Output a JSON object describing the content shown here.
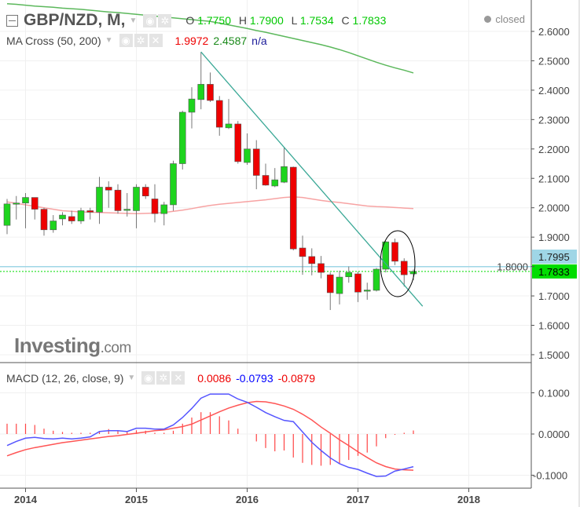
{
  "header": {
    "symbol": "GBP/NZD, M,",
    "open_label": "O",
    "open": "1.7750",
    "high_label": "H",
    "high": "1.7900",
    "low_label": "L",
    "low": "1.7534",
    "close_label": "C",
    "close": "1.7833",
    "status": "closed"
  },
  "ma_legend": {
    "label": "MA Cross (50, 200)",
    "ma50": "1.9972",
    "ma200": "2.4587",
    "extra": "n/a"
  },
  "macd_legend": {
    "label": "MACD (12, 26, close, 9)",
    "hist": "0.0086",
    "macd": "-0.0793",
    "signal": "-0.0879"
  },
  "logo": {
    "text": "Investing",
    "suffix": ".com"
  },
  "price_markers": {
    "last": "1.7833",
    "line": "1.7995"
  },
  "colors": {
    "up": "#1ed41e",
    "down": "#ee0000",
    "ma50": "#f7a3a3",
    "ma200": "#5cb85c",
    "trendline": "#3aa896",
    "macd": "#5555ff",
    "signal": "#ff5555",
    "hist": "#ff4444",
    "last_price": "#00dd00",
    "marker_line": "#9fd6e6"
  },
  "chart_data": [
    {
      "type": "candlestick",
      "title": "GBP/NZD, M,",
      "x_ticks": [
        "2014",
        "2015",
        "2016",
        "2017",
        "2018"
      ],
      "y_ticks": [
        "2.6000",
        "2.5000",
        "2.4000",
        "2.3000",
        "2.2000",
        "2.1000",
        "2.0000",
        "1.9000",
        "1.8000",
        "1.7000",
        "1.6000",
        "1.5000"
      ],
      "ylim": [
        1.5,
        2.6
      ],
      "grid": true,
      "dates": [
        "2013-11",
        "2013-12",
        "2014-01",
        "2014-02",
        "2014-03",
        "2014-04",
        "2014-05",
        "2014-06",
        "2014-07",
        "2014-08",
        "2014-09",
        "2014-10",
        "2014-11",
        "2014-12",
        "2015-01",
        "2015-02",
        "2015-03",
        "2015-04",
        "2015-05",
        "2015-06",
        "2015-07",
        "2015-08",
        "2015-09",
        "2015-10",
        "2015-11",
        "2015-12",
        "2016-01",
        "2016-02",
        "2016-03",
        "2016-04",
        "2016-05",
        "2016-06",
        "2016-07",
        "2016-08",
        "2016-09",
        "2016-10",
        "2016-11",
        "2016-12",
        "2017-01",
        "2017-02",
        "2017-03",
        "2017-04",
        "2017-05",
        "2017-06",
        "2017-07"
      ],
      "ohlc": [
        [
          1.94,
          2.03,
          1.91,
          2.013
        ],
        [
          2.013,
          2.04,
          1.96,
          2.016
        ],
        [
          2.016,
          2.05,
          1.93,
          2.035
        ],
        [
          2.035,
          2.035,
          1.96,
          1.995
        ],
        [
          1.995,
          2.0,
          1.905,
          1.925
        ],
        [
          1.925,
          1.975,
          1.915,
          1.955
        ],
        [
          1.962,
          1.985,
          1.94,
          1.975
        ],
        [
          1.97,
          1.99,
          1.945,
          1.955
        ],
        [
          1.955,
          2.0,
          1.945,
          1.99
        ],
        [
          1.99,
          2.0,
          1.96,
          1.985
        ],
        [
          1.985,
          2.105,
          1.945,
          2.07
        ],
        [
          2.07,
          2.09,
          2.0,
          2.06
        ],
        [
          2.06,
          2.08,
          1.98,
          1.99
        ],
        [
          1.992,
          2.05,
          1.97,
          1.995
        ],
        [
          1.99,
          2.08,
          1.93,
          2.07
        ],
        [
          2.07,
          2.08,
          2.03,
          2.04
        ],
        [
          2.03,
          2.08,
          1.95,
          1.98
        ],
        [
          1.98,
          2.02,
          1.94,
          2.01
        ],
        [
          2.01,
          2.16,
          1.99,
          2.15
        ],
        [
          2.15,
          2.33,
          2.13,
          2.325
        ],
        [
          2.325,
          2.41,
          2.27,
          2.37
        ],
        [
          2.368,
          2.53,
          2.335,
          2.42
        ],
        [
          2.42,
          2.46,
          2.36,
          2.365
        ],
        [
          2.365,
          2.38,
          2.245,
          2.274
        ],
        [
          2.272,
          2.37,
          2.268,
          2.285
        ],
        [
          2.285,
          2.295,
          2.15,
          2.157
        ],
        [
          2.154,
          2.253,
          2.146,
          2.2
        ],
        [
          2.2,
          2.23,
          2.063,
          2.11
        ],
        [
          2.11,
          2.15,
          2.075,
          2.077
        ],
        [
          2.074,
          2.135,
          2.07,
          2.095
        ],
        [
          2.087,
          2.205,
          2.084,
          2.14
        ],
        [
          2.138,
          2.14,
          1.855,
          1.86
        ],
        [
          1.863,
          1.905,
          1.772,
          1.834
        ],
        [
          1.834,
          1.862,
          1.77,
          1.81
        ],
        [
          1.81,
          1.836,
          1.76,
          1.78
        ],
        [
          1.772,
          1.78,
          1.652,
          1.711
        ],
        [
          1.708,
          1.786,
          1.671,
          1.764
        ],
        [
          1.765,
          1.8,
          1.745,
          1.78
        ],
        [
          1.775,
          1.783,
          1.679,
          1.713
        ],
        [
          1.716,
          1.745,
          1.687,
          1.72
        ],
        [
          1.719,
          1.795,
          1.715,
          1.791
        ],
        [
          1.791,
          1.887,
          1.78,
          1.884
        ],
        [
          1.882,
          1.895,
          1.805,
          1.818
        ],
        [
          1.818,
          1.828,
          1.732,
          1.772
        ],
        [
          1.775,
          1.79,
          1.7534,
          1.7833
        ]
      ],
      "ma50": [
        2.02,
        2.015,
        2.01,
        2.005,
        2.0,
        1.995,
        1.99,
        1.988,
        1.986,
        1.985,
        1.984,
        1.983,
        1.982,
        1.981,
        1.98,
        1.981,
        1.982,
        1.984,
        1.988,
        1.992,
        1.997,
        2.003,
        2.008,
        2.012,
        2.015,
        2.018,
        2.021,
        2.024,
        2.027,
        2.031,
        2.035,
        2.037,
        2.035,
        2.03,
        2.025,
        2.021,
        2.018,
        2.014,
        2.01,
        2.006,
        2.004,
        2.003,
        2.001,
        1.999,
        1.9972
      ],
      "ma200": [
        2.694,
        2.692,
        2.689,
        2.686,
        2.684,
        2.682,
        2.679,
        2.677,
        2.675,
        2.672,
        2.669,
        2.666,
        2.664,
        2.661,
        2.658,
        2.655,
        2.652,
        2.649,
        2.646,
        2.643,
        2.64,
        2.637,
        2.634,
        2.628,
        2.622,
        2.616,
        2.61,
        2.603,
        2.597,
        2.59,
        2.583,
        2.576,
        2.569,
        2.562,
        2.555,
        2.547,
        2.538,
        2.528,
        2.517,
        2.506,
        2.495,
        2.485,
        2.476,
        2.468,
        2.4587
      ],
      "trendline": [
        [
          "2015-08",
          2.53
        ],
        [
          "2017-08",
          1.665
        ]
      ],
      "horizontal_line": 1.7995
    },
    {
      "type": "line",
      "title": "MACD (12, 26, close, 9)",
      "y_ticks": [
        "0.1000",
        "0.0000",
        "-0.1000"
      ],
      "ylim": [
        -0.13,
        0.17
      ],
      "grid": true,
      "macd": [
        -0.028,
        -0.018,
        -0.01,
        -0.008,
        -0.011,
        -0.012,
        -0.01,
        -0.012,
        -0.01,
        -0.007,
        0.006,
        0.008,
        0.008,
        0.006,
        0.014,
        0.014,
        0.012,
        0.012,
        0.022,
        0.04,
        0.062,
        0.087,
        0.097,
        0.097,
        0.097,
        0.085,
        0.077,
        0.065,
        0.052,
        0.042,
        0.033,
        0.03,
        0.005,
        -0.02,
        -0.04,
        -0.058,
        -0.072,
        -0.081,
        -0.086,
        -0.095,
        -0.103,
        -0.102,
        -0.09,
        -0.085,
        -0.0793
      ],
      "signal": [
        -0.053,
        -0.045,
        -0.038,
        -0.033,
        -0.029,
        -0.025,
        -0.021,
        -0.018,
        -0.015,
        -0.012,
        -0.009,
        -0.006,
        -0.004,
        -0.001,
        0.002,
        0.005,
        0.008,
        0.01,
        0.014,
        0.018,
        0.024,
        0.034,
        0.044,
        0.054,
        0.063,
        0.07,
        0.076,
        0.079,
        0.078,
        0.074,
        0.068,
        0.06,
        0.048,
        0.034,
        0.017,
        0.002,
        -0.014,
        -0.028,
        -0.043,
        -0.057,
        -0.07,
        -0.079,
        -0.085,
        -0.087,
        -0.0879
      ],
      "histogram": [
        0.025,
        0.025,
        0.025,
        0.022,
        0.013,
        0.008,
        0.005,
        0.003,
        0.003,
        0.003,
        0.007,
        0.012,
        0.008,
        0.005,
        0.009,
        0.008,
        0.003,
        0.003,
        0.008,
        0.025,
        0.04,
        0.053,
        0.053,
        0.043,
        0.033,
        0.013,
        0.0,
        -0.018,
        -0.034,
        -0.042,
        -0.04,
        -0.057,
        -0.07,
        -0.075,
        -0.077,
        -0.075,
        -0.072,
        -0.063,
        -0.053,
        -0.045,
        -0.03,
        -0.01,
        -0.002,
        0.003,
        0.0086
      ]
    }
  ]
}
